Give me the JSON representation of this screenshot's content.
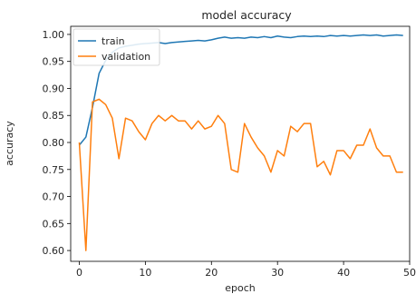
{
  "chart_data": {
    "type": "line",
    "title": "model accuracy",
    "xlabel": "epoch",
    "ylabel": "accuracy",
    "xlim": [
      -1.3,
      50
    ],
    "ylim": [
      0.58,
      1.015
    ],
    "xticks": [
      0,
      10,
      20,
      30,
      40,
      50
    ],
    "xtick_labels": [
      "0",
      "10",
      "20",
      "30",
      "40",
      "50"
    ],
    "yticks": [
      0.6,
      0.65,
      0.7,
      0.75,
      0.8,
      0.85,
      0.9,
      0.95,
      1.0
    ],
    "ytick_labels": [
      "0.60",
      "0.65",
      "0.70",
      "0.75",
      "0.80",
      "0.85",
      "0.90",
      "0.95",
      "1.00"
    ],
    "grid": false,
    "legend_position": "top-left",
    "x": [
      0,
      1,
      2,
      3,
      4,
      5,
      6,
      7,
      8,
      9,
      10,
      11,
      12,
      13,
      14,
      15,
      16,
      17,
      18,
      19,
      20,
      21,
      22,
      23,
      24,
      25,
      26,
      27,
      28,
      29,
      30,
      31,
      32,
      33,
      34,
      35,
      36,
      37,
      38,
      39,
      40,
      41,
      42,
      43,
      44,
      45,
      46,
      47,
      48,
      49
    ],
    "series": [
      {
        "name": "train",
        "color": "#1f77b4",
        "values": [
          0.795,
          0.81,
          0.865,
          0.928,
          0.952,
          0.967,
          0.975,
          0.978,
          0.98,
          0.982,
          0.983,
          0.984,
          0.985,
          0.983,
          0.985,
          0.986,
          0.987,
          0.988,
          0.989,
          0.988,
          0.99,
          0.993,
          0.995,
          0.993,
          0.994,
          0.993,
          0.995,
          0.994,
          0.996,
          0.994,
          0.997,
          0.995,
          0.994,
          0.996,
          0.997,
          0.996,
          0.997,
          0.996,
          0.998,
          0.997,
          0.998,
          0.997,
          0.998,
          0.999,
          0.998,
          0.999,
          0.997,
          0.998,
          0.999,
          0.998
        ]
      },
      {
        "name": "validation",
        "color": "#ff7f0e",
        "values": [
          0.8,
          0.6,
          0.875,
          0.88,
          0.87,
          0.845,
          0.77,
          0.845,
          0.84,
          0.82,
          0.805,
          0.835,
          0.85,
          0.84,
          0.85,
          0.84,
          0.84,
          0.825,
          0.84,
          0.825,
          0.83,
          0.85,
          0.835,
          0.75,
          0.745,
          0.835,
          0.81,
          0.79,
          0.775,
          0.745,
          0.785,
          0.775,
          0.83,
          0.82,
          0.835,
          0.835,
          0.755,
          0.765,
          0.74,
          0.785,
          0.785,
          0.77,
          0.795,
          0.795,
          0.825,
          0.79,
          0.775,
          0.775,
          0.745,
          0.745
        ]
      }
    ]
  }
}
